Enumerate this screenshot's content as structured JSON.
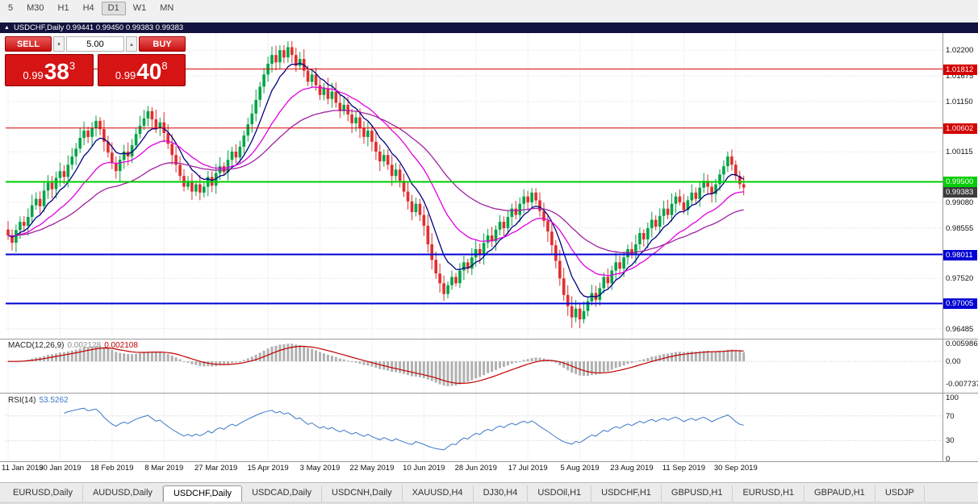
{
  "window": {
    "title": "USDCHF,Daily 0.99441 0.99450 0.99383 0.99383"
  },
  "toolbar": {
    "timeframes": [
      {
        "label": "5",
        "active": false
      },
      {
        "label": "M30",
        "active": false
      },
      {
        "label": "H1",
        "active": false
      },
      {
        "label": "H4",
        "active": false
      },
      {
        "label": "D1",
        "active": true
      },
      {
        "label": "W1",
        "active": false
      },
      {
        "label": "MN",
        "active": false
      }
    ]
  },
  "icons": {
    "chart_marker": "▲",
    "spin_up": "▴",
    "spin_down": "▾"
  },
  "trade_panel": {
    "sell_label": "SELL",
    "buy_label": "BUY",
    "lot_value": "5.00",
    "bid": {
      "prefix": "0.99",
      "big": "38",
      "sup": "3"
    },
    "ask": {
      "prefix": "0.99",
      "big": "40",
      "sup": "8"
    }
  },
  "price_axis": {
    "gridline_labels": [
      "1.02200",
      "1.01675",
      "1.01150",
      "1.00115",
      "0.99080",
      "0.98555",
      "0.97520",
      "0.96485"
    ],
    "current_price": {
      "text": "0.99383",
      "color": "#3c3c3c"
    }
  },
  "indicators": {
    "macd": {
      "name": "MACD(12,26,9)",
      "value1": "0.002128",
      "value2": "0.002108",
      "axis_labels": [
        {
          "value": 0.005986,
          "text": "0.005986"
        },
        {
          "value": 0,
          "text": "0.00"
        },
        {
          "value": -0.007737,
          "text": "-0.007737"
        }
      ],
      "histogram_color": "#b0b0b0",
      "signal_color": "#c00000"
    },
    "rsi": {
      "name": "RSI(14)",
      "value": "53.5262",
      "axis_labels": [
        {
          "value": 100,
          "text": "100"
        },
        {
          "value": 70,
          "text": "70"
        },
        {
          "value": 30,
          "text": "30"
        },
        {
          "value": 0,
          "text": "0"
        }
      ],
      "levels": [
        70,
        30
      ],
      "line_color": "#3c78c8"
    }
  },
  "time_axis": {
    "labels": [
      "11 Jan 2019",
      "30 Jan 2019",
      "18 Feb 2019",
      "8 Mar 2019",
      "27 Mar 2019",
      "15 Apr 2019",
      "3 May 2019",
      "22 May 2019",
      "10 Jun 2019",
      "28 Jun 2019",
      "17 Jul 2019",
      "5 Aug 2019",
      "23 Aug 2019",
      "11 Sep 2019",
      "30 Sep 2019"
    ]
  },
  "tabs": {
    "items": [
      {
        "label": "EURUSD,Daily",
        "active": false
      },
      {
        "label": "AUDUSD,Daily",
        "active": false
      },
      {
        "label": "USDCHF,Daily",
        "active": true
      },
      {
        "label": "USDCAD,Daily",
        "active": false
      },
      {
        "label": "USDCNH,Daily",
        "active": false
      },
      {
        "label": "XAUUSD,H4",
        "active": false
      },
      {
        "label": "DJ30,H4",
        "active": false
      },
      {
        "label": "USDOil,H1",
        "active": false
      },
      {
        "label": "USDCHF,H1",
        "active": false
      },
      {
        "label": "GBPUSD,H1",
        "active": false
      },
      {
        "label": "EURUSD,H1",
        "active": false
      },
      {
        "label": "GBPAUD,H1",
        "active": false
      },
      {
        "label": "USDJP",
        "active": false
      }
    ]
  },
  "chart_data": {
    "type": "candlestick",
    "symbol": "USDCHF",
    "timeframe": "Daily",
    "current_bar": {
      "open": 0.99441,
      "high": 0.9945,
      "low": 0.99383,
      "close": 0.99383
    },
    "bid": 0.99383,
    "ask": 0.99408,
    "y_axis_range": [
      0.963,
      1.0255
    ],
    "up_color": "#00a446",
    "down_color": "#df2f2f",
    "moving_averages": [
      {
        "period": 8,
        "color": "#000082"
      },
      {
        "period": 21,
        "color": "#e000e0"
      },
      {
        "period": 45,
        "color": "#a020a0"
      }
    ],
    "hlines": [
      {
        "price": 1.01812,
        "label": "1.01812",
        "color": "#d40000",
        "width": 1
      },
      {
        "price": 1.00602,
        "label": "1.00602",
        "color": "#d40000",
        "width": 1
      },
      {
        "price": 0.995,
        "label": "0.99500",
        "color": "#00cc00",
        "width": 2
      },
      {
        "price": 0.98011,
        "label": "0.98011",
        "color": "#0000d4",
        "width": 2
      },
      {
        "price": 0.97005,
        "label": "0.97005",
        "color": "#0000d4",
        "width": 2
      }
    ],
    "closes": [
      0.984,
      0.9825,
      0.9851,
      0.9868,
      0.986,
      0.9878,
      0.9902,
      0.9915,
      0.99,
      0.9932,
      0.9948,
      0.9935,
      0.9958,
      0.9972,
      0.996,
      0.9985,
      1.0002,
      1.0018,
      1.004,
      1.0055,
      1.0042,
      1.006,
      1.0075,
      1.0058,
      1.0032,
      1.001,
      0.9988,
      0.9972,
      0.9995,
      1.0012,
      1.0002,
      1.0025,
      1.0048,
      1.0065,
      1.008,
      1.0095,
      1.0078,
      1.006,
      1.0072,
      1.005,
      1.0028,
      1.0005,
      0.9985,
      0.9962,
      0.994,
      0.9952,
      0.993,
      0.9945,
      0.9928,
      0.994,
      0.996,
      0.9942,
      0.9968,
      0.9982,
      0.997,
      0.9995,
      1.0012,
      1.0,
      1.0022,
      1.0045,
      1.0068,
      1.009,
      1.0118,
      1.0145,
      1.017,
      1.0192,
      1.021,
      1.0195,
      1.022,
      1.0205,
      1.0226,
      1.021,
      1.0188,
      1.0202,
      1.0178,
      1.0155,
      1.017,
      1.0148,
      1.0128,
      1.0142,
      1.012,
      1.0135,
      1.0112,
      1.0095,
      1.0108,
      1.0088,
      1.007,
      1.0082,
      1.006,
      1.0042,
      1.0055,
      1.0032,
      1.0012,
      0.9992,
      1.0005,
      0.9985,
      0.9962,
      0.9975,
      0.9952,
      0.993,
      0.991,
      0.9888,
      0.9905,
      0.9882,
      0.986,
      0.9822,
      0.979,
      0.9762,
      0.9742,
      0.972,
      0.9738,
      0.9755,
      0.9742,
      0.9768,
      0.9785,
      0.9772,
      0.9795,
      0.9812,
      0.98,
      0.9825,
      0.984,
      0.9828,
      0.9852,
      0.9868,
      0.9855,
      0.9878,
      0.9895,
      0.9882,
      0.9905,
      0.992,
      0.9908,
      0.9928,
      0.9912,
      0.989,
      0.987,
      0.9848,
      0.982,
      0.9788,
      0.9752,
      0.9718,
      0.9695,
      0.9672,
      0.969,
      0.9668,
      0.9685,
      0.9705,
      0.9722,
      0.9708,
      0.9732,
      0.9755,
      0.9742,
      0.9768,
      0.9785,
      0.9772,
      0.9795,
      0.9812,
      0.98,
      0.9822,
      0.9845,
      0.9832,
      0.9855,
      0.9872,
      0.9858,
      0.988,
      0.9895,
      0.9882,
      0.9905,
      0.992,
      0.9908,
      0.9892,
      0.9912,
      0.9928,
      0.9915,
      0.9938,
      0.9952,
      0.994,
      0.9925,
      0.9945,
      0.9965,
      0.9982,
      1.0002,
      0.9985,
      0.9962,
      0.9945,
      0.99383
    ]
  }
}
